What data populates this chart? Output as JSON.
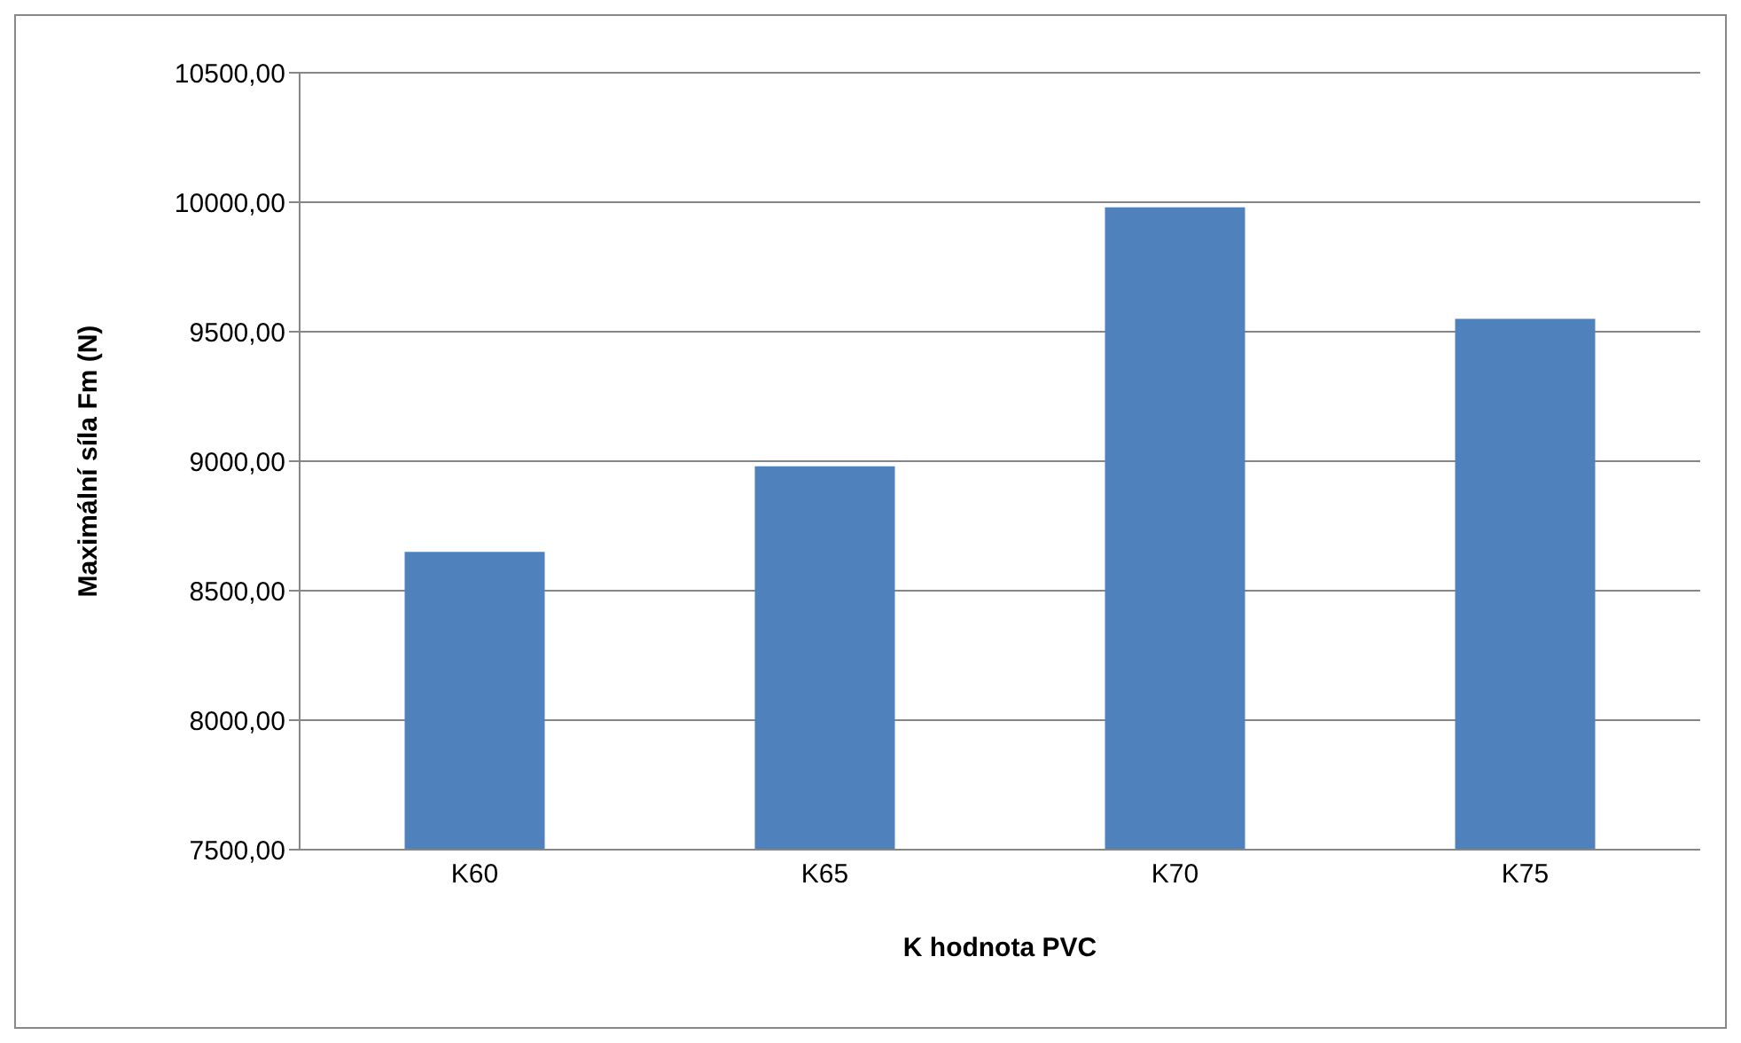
{
  "chart_data": {
    "type": "bar",
    "xlabel": "K hodnota PVC",
    "ylabel": "Maximální síla Fm (N)",
    "categories": [
      "K60",
      "K65",
      "K70",
      "K75"
    ],
    "values": [
      8650,
      8980,
      9980,
      9550
    ],
    "color": "#4f81bd",
    "ylim": [
      7500,
      10500
    ],
    "yticks": [
      {
        "value": 7500,
        "label": "7500,00"
      },
      {
        "value": 8000,
        "label": "8000,00"
      },
      {
        "value": 8500,
        "label": "8500,00"
      },
      {
        "value": 9000,
        "label": "9000,00"
      },
      {
        "value": 9500,
        "label": "9500,00"
      },
      {
        "value": 10000,
        "label": "10000,00"
      },
      {
        "value": 10500,
        "label": "10500,00"
      }
    ],
    "grid": "y"
  }
}
